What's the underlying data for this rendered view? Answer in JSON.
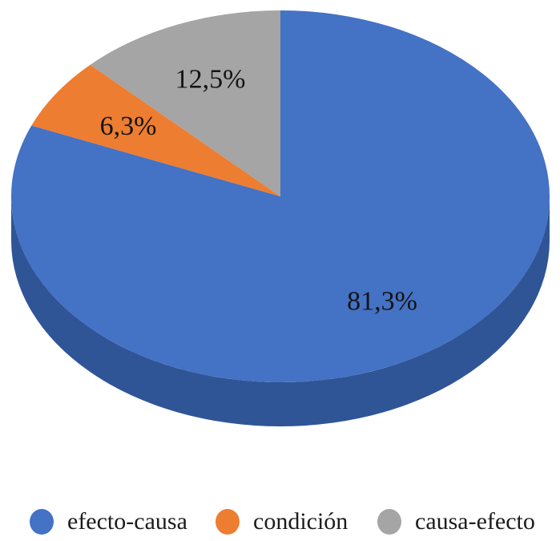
{
  "chart_data": {
    "type": "pie",
    "style": "3d",
    "title": "",
    "direction": "clockwise",
    "start_angle_deg": 0,
    "legend_position": "bottom",
    "background": "#ffffff",
    "label_color": "#141414",
    "side_color": "#2F5597",
    "slices": [
      {
        "label": "efecto-causa",
        "value": 81.3,
        "display": "81,3%",
        "color": "#4472C4"
      },
      {
        "label": "condición",
        "value": 6.3,
        "display": "6,3%",
        "color": "#ED7D31"
      },
      {
        "label": "causa-efecto",
        "value": 12.5,
        "display": "12,5%",
        "color": "#A5A5A5"
      }
    ]
  }
}
